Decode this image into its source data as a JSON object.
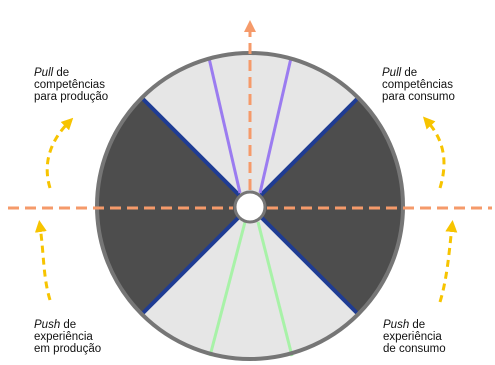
{
  "colors": {
    "dark_sector": "#4d4d4d",
    "light_sector": "#e6e6e6",
    "rim": "#767676",
    "divider_blue": "#1f3c93",
    "purple_line": "#9b7cf0",
    "green_line": "#a8f2a8",
    "axis_dashed": "#f59a6a",
    "curved_arrow": "#f7c400"
  },
  "labels": {
    "top_left": {
      "italic": "Pull",
      "rest": " de",
      "line2": "competências",
      "line3": "para produção"
    },
    "top_right": {
      "italic": "Pull",
      "rest": " de",
      "line2": "competências",
      "line3": "para consumo"
    },
    "bottom_left": {
      "italic": "Push",
      "rest": " de",
      "line2": "experiência",
      "line3": "em produção"
    },
    "bottom_right": {
      "italic": "Push",
      "rest": " de",
      "line2": "experiência",
      "line3": "de consumo"
    }
  }
}
